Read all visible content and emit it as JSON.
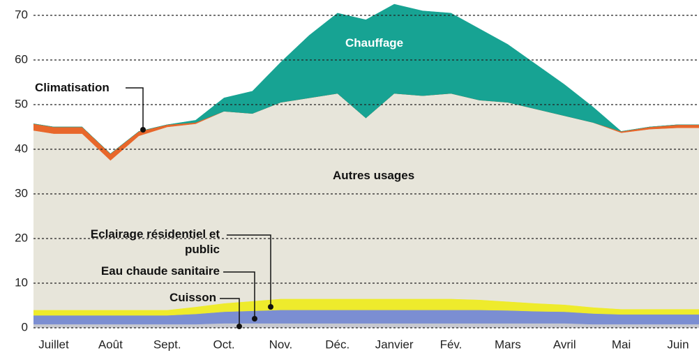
{
  "chart_data": {
    "type": "stacked-area",
    "categories": [
      null,
      "Juillet",
      null,
      "Août",
      null,
      "Sept.",
      null,
      "Oct.",
      null,
      "Nov.",
      null,
      "Déc.",
      null,
      "Janvier",
      null,
      "Fév.",
      null,
      "Mars",
      null,
      "Avril",
      null,
      "Mai",
      null,
      "Juin",
      null
    ],
    "series": [
      {
        "name": "Cuisson",
        "color": "#c8c9cf",
        "values": [
          0.8,
          0.8,
          0.8,
          0.8,
          0.8,
          0.8,
          0.8,
          1,
          1,
          1,
          1,
          1,
          1,
          1,
          1,
          1,
          1,
          1,
          1,
          1,
          0.8,
          0.8,
          0.8,
          0.8,
          0.8
        ]
      },
      {
        "name": "Eau chaude sanitaire",
        "color": "#7b8ed2",
        "values": [
          2,
          2,
          2,
          2,
          2,
          2,
          2.3,
          2.6,
          2.8,
          3,
          3,
          3,
          3,
          3,
          3,
          3,
          3,
          2.9,
          2.7,
          2.6,
          2.4,
          2.2,
          2.2,
          2.2,
          2.2
        ]
      },
      {
        "name": "Eclairage résidentiel et public",
        "color": "#eeeb2c",
        "values": [
          1.2,
          1.2,
          1.2,
          1.2,
          1.2,
          1.2,
          1.6,
          1.9,
          2.2,
          2.5,
          2.5,
          2.5,
          2.5,
          2.5,
          2.5,
          2.5,
          2.3,
          2,
          1.8,
          1.6,
          1.4,
          1.2,
          1.2,
          1.2,
          1.2
        ]
      },
      {
        "name": "Autres usages",
        "color": "#e7e5da",
        "values": [
          40.5,
          39.5,
          39.5,
          33.5,
          39,
          41,
          41,
          43,
          42,
          44,
          45,
          46,
          40.5,
          46,
          45.5,
          46,
          44.7,
          44.6,
          43.5,
          42.3,
          41.4,
          39.5,
          40.3,
          40.6,
          40.6
        ]
      },
      {
        "name": "Climatisation",
        "color": "#e8672b",
        "values": [
          1.5,
          1.5,
          1.5,
          1.5,
          1,
          0.5,
          0.3,
          0,
          0,
          0,
          0,
          0,
          0,
          0,
          0,
          0,
          0,
          0,
          0,
          0,
          0,
          0.3,
          0.5,
          0.7,
          0.7
        ]
      },
      {
        "name": "Chauffage",
        "color": "#17a393",
        "values": [
          0,
          0,
          0,
          0,
          0,
          0,
          0.5,
          3,
          5,
          9,
          14,
          18,
          22,
          20,
          19,
          18,
          16,
          13,
          10,
          7,
          3.5,
          0,
          0,
          0,
          0
        ]
      }
    ],
    "ylim": [
      0,
      70
    ],
    "yticks": [
      0,
      10,
      20,
      30,
      40,
      50,
      60,
      70
    ],
    "grid": true
  }
}
